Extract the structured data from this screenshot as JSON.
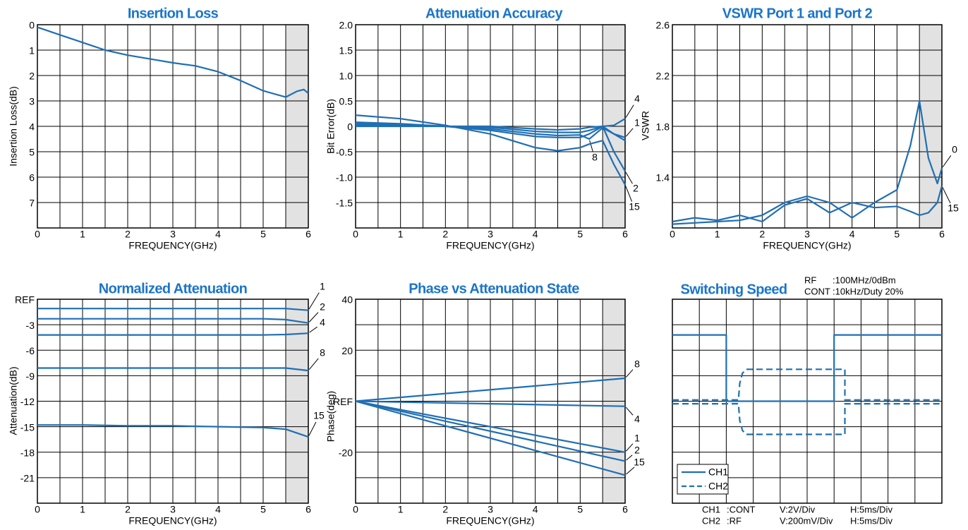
{
  "chart_data": [
    {
      "type": "line",
      "title": "Insertion Loss",
      "xlabel": "FREQUENCY(GHz)",
      "ylabel": "Insertion Loss(dB)",
      "xlim": [
        0,
        6
      ],
      "ylim": [
        8,
        0
      ],
      "xticks": [
        0,
        1,
        2,
        3,
        4,
        5,
        6
      ],
      "xgrid": [
        0.5,
        1.5,
        2.5,
        3.5,
        4.5,
        5.5
      ],
      "yticks": [
        0,
        1,
        2,
        3,
        4,
        5,
        6,
        7
      ],
      "shaded": [
        5.5,
        6
      ],
      "x": [
        0,
        0.5,
        1,
        1.5,
        2,
        2.5,
        3,
        3.5,
        4,
        4.5,
        5,
        5.5,
        5.75,
        5.9,
        6
      ],
      "series": [
        {
          "color": "#1f6fb4",
          "values": [
            0.1,
            0.4,
            0.7,
            1.0,
            1.2,
            1.35,
            1.5,
            1.62,
            1.85,
            2.2,
            2.6,
            2.85,
            2.62,
            2.55,
            2.7
          ]
        }
      ]
    },
    {
      "type": "line",
      "title": "Attenuation Accuracy",
      "xlabel": "FREQUENCY(GHz)",
      "ylabel": "Bit Error(dB)",
      "xlim": [
        0,
        6
      ],
      "ylim": [
        -2,
        2
      ],
      "xticks": [
        0,
        1,
        2,
        3,
        4,
        5,
        6
      ],
      "xgrid": [
        0.5,
        1.5,
        2.5,
        3.5,
        4.5,
        5.5
      ],
      "yticks": [
        {
          "value": 2,
          "label": "2.0"
        },
        1.5,
        {
          "value": 1,
          "label": "1.0"
        },
        0.5,
        0,
        -0.5,
        {
          "value": -1,
          "label": "-1.0"
        },
        -1.5
      ],
      "shaded": [
        5.5,
        6
      ],
      "x": [
        0,
        1,
        2,
        3,
        4,
        4.5,
        5,
        5.2,
        5.5,
        5.75,
        6
      ],
      "series": [
        {
          "name": "4",
          "color": "#1f6fb4",
          "values": [
            0,
            0,
            0,
            0,
            -0.05,
            -0.07,
            -0.05,
            -0.02,
            0,
            0.02,
            0.15
          ]
        },
        {
          "name": "1",
          "color": "#1f6fb4",
          "values": [
            0.03,
            0.02,
            0,
            -0.02,
            -0.1,
            -0.12,
            -0.12,
            -0.08,
            0,
            -0.15,
            -0.22
          ]
        },
        {
          "name": "8",
          "color": "#1f6fb4",
          "values": [
            0.05,
            0.03,
            0,
            -0.05,
            -0.15,
            -0.18,
            -0.17,
            -0.25,
            -0.03,
            -0.15,
            -0.28
          ]
        },
        {
          "name": "2",
          "color": "#1f6fb4",
          "values": [
            0.08,
            0.05,
            0,
            -0.08,
            -0.2,
            -0.22,
            -0.22,
            -0.15,
            0,
            -0.5,
            -0.88
          ]
        },
        {
          "name": "15",
          "color": "#1f6fb4",
          "values": [
            0.22,
            0.15,
            0.02,
            -0.15,
            -0.42,
            -0.48,
            -0.42,
            -0.35,
            -0.28,
            -0.75,
            -1.15
          ]
        }
      ]
    },
    {
      "type": "line",
      "title": "VSWR Port 1 and Port 2",
      "xlabel": "FREQUENCY(GHz)",
      "ylabel": "VSWR",
      "xlim": [
        0,
        6
      ],
      "ylim": [
        1.0,
        2.6
      ],
      "xticks": [
        0,
        1,
        2,
        3,
        4,
        5,
        6
      ],
      "xgrid": [
        0.5,
        1.5,
        2.5,
        3.5,
        4.5,
        5.5
      ],
      "yticks": [
        2.6,
        2.2,
        1.8,
        1.4
      ],
      "ygrid": [
        2.4,
        2.0,
        1.6,
        1.2
      ],
      "shaded": [
        5.5,
        6
      ],
      "x": [
        0,
        0.5,
        1,
        1.5,
        2,
        2.5,
        3,
        3.5,
        4,
        4.5,
        5,
        5.3,
        5.5,
        5.7,
        5.9,
        6
      ],
      "series": [
        {
          "name": "0",
          "color": "#1f6fb4",
          "values": [
            1.03,
            1.04,
            1.05,
            1.06,
            1.1,
            1.2,
            1.25,
            1.2,
            1.08,
            1.2,
            1.3,
            1.65,
            2.0,
            1.55,
            1.35,
            1.47
          ]
        },
        {
          "name": "15",
          "color": "#1f6fb4",
          "values": [
            1.05,
            1.08,
            1.06,
            1.1,
            1.05,
            1.18,
            1.23,
            1.12,
            1.2,
            1.16,
            1.17,
            1.13,
            1.1,
            1.12,
            1.2,
            1.33
          ]
        }
      ]
    },
    {
      "type": "line",
      "title": "Normalized Attenuation",
      "xlabel": "FREQUENCY(GHz)",
      "ylabel": "Attenuation(dB)",
      "xlim": [
        0,
        6
      ],
      "ylim": [
        -24,
        0
      ],
      "xticks": [
        0,
        1,
        2,
        3,
        4,
        5,
        6
      ],
      "xgrid": [
        0.5,
        1.5,
        2.5,
        3.5,
        4.5,
        5.5
      ],
      "yticks": [
        {
          "value": 0,
          "label": "REF"
        },
        -3,
        -6,
        -9,
        -12,
        -15,
        -18,
        -21
      ],
      "shaded": [
        5.5,
        6
      ],
      "x": [
        0,
        1,
        2,
        3,
        4,
        5,
        5.5,
        6
      ],
      "series": [
        {
          "name": "1",
          "color": "#1f6fb4",
          "values": [
            -1.1,
            -1.1,
            -1.1,
            -1.1,
            -1.1,
            -1.1,
            -1.1,
            -1.3
          ]
        },
        {
          "name": "2",
          "color": "#1f6fb4",
          "values": [
            -2.3,
            -2.3,
            -2.3,
            -2.3,
            -2.3,
            -2.3,
            -2.4,
            -2.8
          ]
        },
        {
          "name": "4",
          "color": "#1f6fb4",
          "values": [
            -4.2,
            -4.2,
            -4.2,
            -4.2,
            -4.2,
            -4.2,
            -4.15,
            -4.0
          ]
        },
        {
          "name": "8",
          "color": "#1f6fb4",
          "values": [
            -8.1,
            -8.1,
            -8.1,
            -8.1,
            -8.1,
            -8.1,
            -8.1,
            -8.4
          ]
        },
        {
          "name": "15",
          "color": "#1f6fb4",
          "values": [
            -14.8,
            -14.8,
            -14.9,
            -14.9,
            -15.0,
            -15.1,
            -15.3,
            -16.2
          ]
        }
      ]
    },
    {
      "type": "line",
      "title": "Phase vs Attenuation State",
      "xlabel": "FREQUENCY(GHz)",
      "ylabel": "Phase(deg)",
      "xlim": [
        0,
        6
      ],
      "ylim": [
        -40,
        40
      ],
      "xticks": [
        0,
        1,
        2,
        3,
        4,
        5,
        6
      ],
      "xgrid": [
        0.5,
        1.5,
        2.5,
        3.5,
        4.5,
        5.5
      ],
      "yticks": [
        40,
        20,
        {
          "value": 0,
          "label": "REF"
        },
        -20
      ],
      "ygrid": [
        30,
        10,
        -10,
        -30
      ],
      "shaded": [
        5.5,
        6
      ],
      "x": [
        0,
        6
      ],
      "series": [
        {
          "name": "8",
          "color": "#1f6fb4",
          "values": [
            0,
            9
          ]
        },
        {
          "name": "4",
          "color": "#1f6fb4",
          "values": [
            0,
            -2
          ]
        },
        {
          "name": "1",
          "color": "#1f6fb4",
          "values": [
            0,
            -20
          ]
        },
        {
          "name": "2",
          "color": "#1f6fb4",
          "values": [
            0,
            -23.5
          ]
        },
        {
          "name": "15",
          "color": "#1f6fb4",
          "values": [
            0,
            -29
          ]
        }
      ]
    },
    {
      "type": "line",
      "title": "Switching Speed",
      "legend": true,
      "settings": [
        [
          "RF",
          ":100MHz/0dBm"
        ],
        [
          "CONT",
          ":10kHz/Duty 20%"
        ]
      ],
      "footer": [
        [
          "CH1",
          ":CONT",
          "V:2V/Div",
          "H:5ms/Div"
        ],
        [
          "CH2",
          ":RF",
          "V:200mV/Div",
          "H:5ms/Div"
        ]
      ],
      "xlim": [
        0,
        10
      ],
      "ylim": [
        -4,
        4
      ],
      "xgrid": [
        1,
        2,
        3,
        4,
        5,
        6,
        7,
        8,
        9
      ],
      "ygrid": [
        3,
        2,
        1,
        0,
        -1,
        -2,
        -3
      ],
      "series": [
        {
          "name": "CH1",
          "color": "#1f6fb4",
          "x": [
            0,
            2,
            2,
            6,
            6,
            10
          ],
          "values": [
            2.6,
            2.6,
            0,
            0,
            2.6,
            2.6
          ]
        },
        {
          "name": "CH2",
          "color": "#1f6fb4",
          "dash": true,
          "x": [
            0,
            2.45,
            2.5,
            2.6,
            2.75,
            6.4,
            6.4,
            10,
            0,
            0,
            2.45,
            2.5,
            2.6,
            2.75,
            6.4,
            6.4,
            10
          ],
          "values": [
            0.05,
            0.05,
            0.7,
            1.1,
            1.25,
            1.25,
            0.05,
            0.05,
            null,
            -0.1,
            -0.1,
            -0.75,
            -1.15,
            -1.3,
            -1.3,
            -0.1,
            -0.1
          ]
        }
      ]
    }
  ]
}
